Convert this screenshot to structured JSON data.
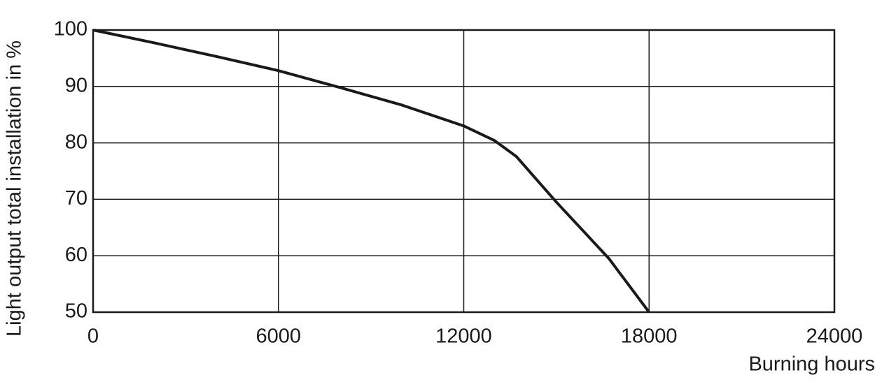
{
  "chart_data": {
    "type": "line",
    "x_label": "Burning hours",
    "y_label": "Light output total installation in %",
    "series": [
      {
        "color": "#1a1a1a",
        "x": [
          0,
          2000,
          4000,
          6000,
          8000,
          10000,
          12000,
          13000,
          13700,
          15000,
          16700,
          18000
        ],
        "values": [
          100,
          97.7,
          95.3,
          92.8,
          89.8,
          86.7,
          83.0,
          80.4,
          77.6,
          69.5,
          59.5,
          50
        ]
      }
    ],
    "xlim": [
      0,
      24000
    ],
    "xticks": [
      0,
      6000,
      12000,
      18000,
      24000
    ],
    "ylim": [
      50,
      100
    ],
    "yticks": [
      50,
      60,
      70,
      80,
      90,
      100
    ],
    "grid": true
  }
}
